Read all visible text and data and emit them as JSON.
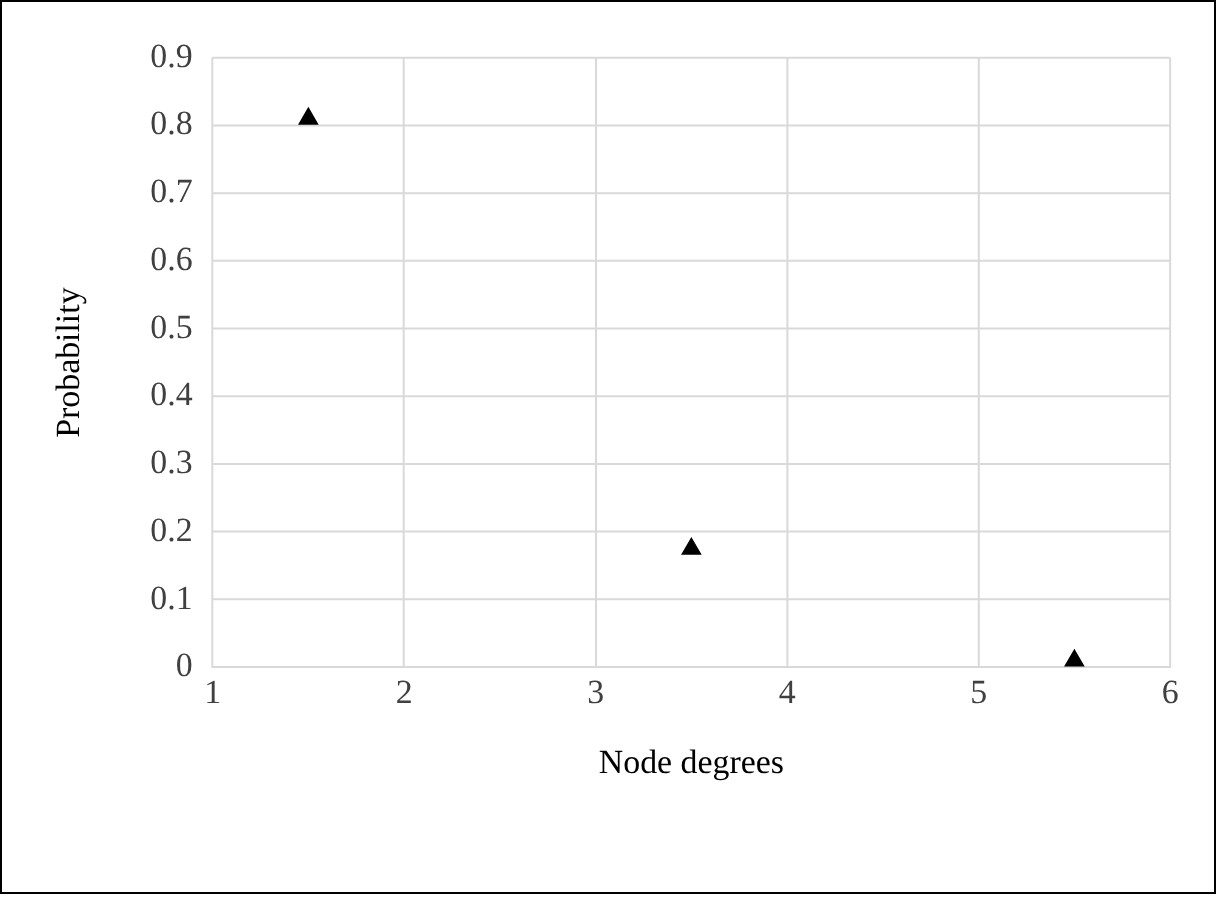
{
  "chart_data": {
    "type": "scatter",
    "xlabel": "Node degrees",
    "ylabel": "Probability",
    "series": [
      {
        "color": "#000000",
        "x": [
          1.5,
          3.5,
          5.5
        ],
        "values": [
          0.81,
          0.175,
          0.01
        ]
      }
    ],
    "xlim": [
      1,
      6
    ],
    "xticks": [
      1,
      2,
      3,
      4,
      5,
      6
    ],
    "ylim": [
      0,
      0.9
    ],
    "yticks": [
      0,
      0.1,
      0.2,
      0.3,
      0.4,
      0.5,
      0.6,
      0.7,
      0.8,
      0.9
    ],
    "grid": true,
    "legend": false,
    "marker": "triangle"
  }
}
